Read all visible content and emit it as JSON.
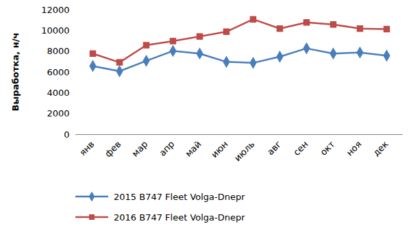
{
  "chart_data": {
    "type": "line",
    "y_label": "Выработка, н/ч",
    "categories": [
      "янв",
      "фев",
      "мар",
      "апр",
      "май",
      "июн",
      "июль",
      "авг",
      "сен",
      "окт",
      "ноя",
      "дек"
    ],
    "series": [
      {
        "name": "2015 B747 Fleet Volga-Dnepr",
        "color": "#4a7ebb",
        "marker": "diamond",
        "values": [
          6600,
          6100,
          7100,
          8050,
          7800,
          7000,
          6900,
          7500,
          8300,
          7800,
          7900,
          7600
        ]
      },
      {
        "name": "2016 B747 Fleet Volga-Dnepr",
        "color": "#be4b48",
        "marker": "square",
        "values": [
          7800,
          6950,
          8600,
          9000,
          9450,
          9900,
          11100,
          10200,
          10800,
          10600,
          10200,
          10150
        ]
      }
    ],
    "ylim": [
      0,
      12000
    ],
    "yticks": [
      0,
      2000,
      4000,
      6000,
      8000,
      10000,
      12000
    ],
    "grid": false,
    "legend": "bottom"
  }
}
